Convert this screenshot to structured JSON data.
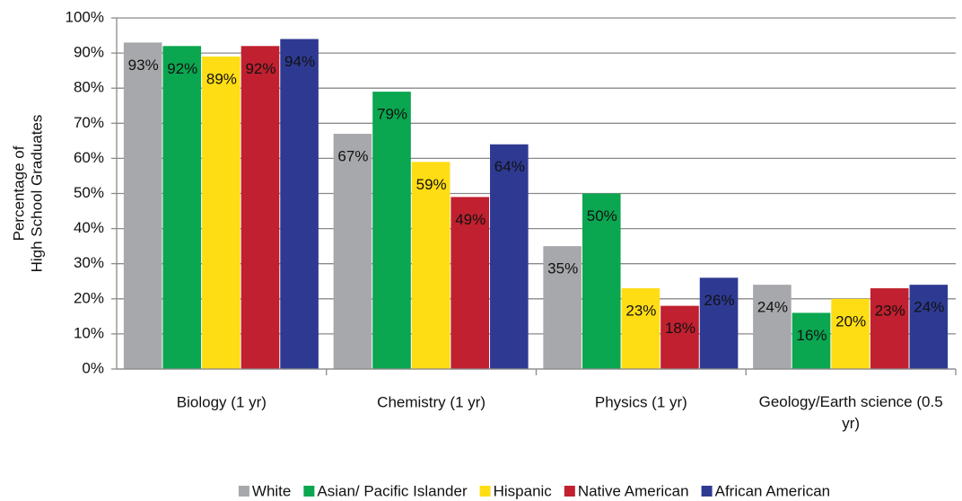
{
  "chart_data": {
    "type": "bar",
    "ylabel": [
      "Percentage of",
      "High School Graduates"
    ],
    "categories": [
      "Biology (1 yr)",
      "Chemistry (1 yr)",
      "Physics (1 yr)",
      "Geology/Earth science (0.5 yr)"
    ],
    "series": [
      {
        "name": "White",
        "color": "#a6a8ab",
        "label_color": "#111111",
        "values": [
          93,
          67,
          35,
          24
        ],
        "value_labels": [
          "93%",
          "67%",
          "35%",
          "24%"
        ]
      },
      {
        "name": "Asian/ Pacific Islander",
        "color": "#0aa650",
        "label_color": "#111111",
        "values": [
          92,
          79,
          50,
          16
        ],
        "value_labels": [
          "92%",
          "79%",
          "50%",
          "16%"
        ]
      },
      {
        "name": "Hispanic",
        "color": "#ffdd15",
        "label_color": "#111111",
        "values": [
          89,
          59,
          23,
          20
        ],
        "value_labels": [
          "89%",
          "59%",
          "23%",
          "20%"
        ]
      },
      {
        "name": "Native American",
        "color": "#c0202f",
        "label_color": "#111111",
        "values": [
          92,
          49,
          18,
          23
        ],
        "value_labels": [
          "92%",
          "49%",
          "18%",
          "23%"
        ]
      },
      {
        "name": "African American",
        "color": "#2e3a92",
        "label_color": "#ffffff",
        "values": [
          94,
          64,
          26,
          24
        ],
        "value_labels": [
          "94%",
          "64%",
          "26%",
          "24%"
        ]
      }
    ],
    "ylim": [
      0,
      100
    ],
    "yticks": [
      {
        "value": 0,
        "label": "0%"
      },
      {
        "value": 10,
        "label": "10%"
      },
      {
        "value": 20,
        "label": "20%"
      },
      {
        "value": 30,
        "label": "30%"
      },
      {
        "value": 40,
        "label": "40%"
      },
      {
        "value": 50,
        "label": "50%"
      },
      {
        "value": 60,
        "label": "60%"
      },
      {
        "value": 70,
        "label": "70%"
      },
      {
        "value": 80,
        "label": "80%"
      },
      {
        "value": 90,
        "label": "90%"
      },
      {
        "value": 100,
        "label": "100%"
      }
    ],
    "grid": true,
    "legend": "bottom"
  }
}
